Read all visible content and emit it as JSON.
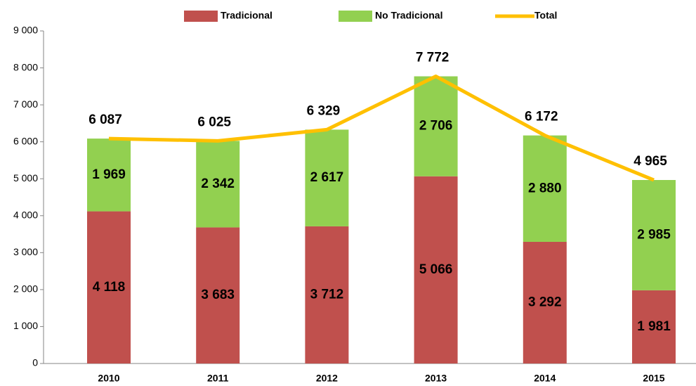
{
  "chart_data": {
    "type": "bar",
    "stacked": true,
    "categories": [
      "2010",
      "2011",
      "2012",
      "2013",
      "2014",
      "2015"
    ],
    "series": [
      {
        "name": "Tradicional",
        "color": "#c0504d",
        "values": [
          4118,
          3683,
          3712,
          5066,
          3292,
          1981
        ],
        "value_labels": [
          "4 118",
          "3 683",
          "3 712",
          "5 066",
          "3 292",
          "1 981"
        ]
      },
      {
        "name": "No Tradicional",
        "color": "#92d050",
        "values": [
          1969,
          2342,
          2617,
          2706,
          2880,
          2985
        ],
        "value_labels": [
          "1 969",
          "2 342",
          "2 617",
          "2 706",
          "2 880",
          "2 985"
        ]
      },
      {
        "name": "Total",
        "type": "line",
        "color": "#ffc000",
        "values": [
          6087,
          6025,
          6329,
          7772,
          6172,
          4965
        ],
        "value_labels": [
          "6 087",
          "6 025",
          "6 329",
          "7 772",
          "6 172",
          "4 965"
        ]
      }
    ],
    "ylim": [
      0,
      9000
    ],
    "yticks": [
      0,
      {
        "value": 1000,
        "label": "1 000"
      },
      {
        "value": 2000,
        "label": "2 000"
      },
      {
        "value": 3000,
        "label": "3 000"
      },
      {
        "value": 4000,
        "label": "4 000"
      },
      {
        "value": 5000,
        "label": "5 000"
      },
      {
        "value": 6000,
        "label": "6 000"
      },
      {
        "value": 7000,
        "label": "7 000"
      },
      {
        "value": 8000,
        "label": "8 000"
      },
      {
        "value": 9000,
        "label": "9 000"
      }
    ],
    "grid": false,
    "legend": "top"
  }
}
